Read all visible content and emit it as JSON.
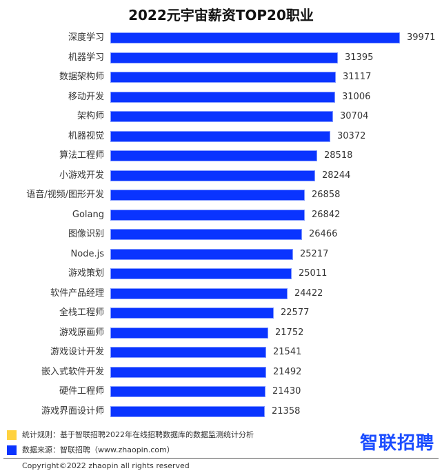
{
  "title": "2022元宇宙薪资TOP20职业",
  "chart_data": {
    "type": "bar",
    "orientation": "horizontal",
    "title": "2022元宇宙薪资TOP20职业",
    "xlabel": "",
    "ylabel": "",
    "grid": false,
    "legend_position": "none",
    "bar_color": "#0a34ff",
    "categories": [
      "深度学习",
      "机器学习",
      "数据架构师",
      "移动开发",
      "架构师",
      "机器视觉",
      "算法工程师",
      "小游戏开发",
      "语音/视频/图形开发",
      "Golang",
      "图像识别",
      "Node.js",
      "游戏策划",
      "软件产品经理",
      "全栈工程师",
      "游戏原画师",
      "游戏设计开发",
      "嵌入式软件开发",
      "硬件工程师",
      "游戏界面设计师"
    ],
    "values": [
      39971,
      31395,
      31117,
      31006,
      30704,
      30372,
      28518,
      28244,
      26858,
      26842,
      26466,
      25217,
      25011,
      24422,
      22577,
      21752,
      21541,
      21492,
      21430,
      21358
    ],
    "xlim": [
      0,
      39971
    ]
  },
  "rows": [
    {
      "label": "深度学习",
      "value": "39971"
    },
    {
      "label": "机器学习",
      "value": "31395"
    },
    {
      "label": "数据架构师",
      "value": "31117"
    },
    {
      "label": "移动开发",
      "value": "31006"
    },
    {
      "label": "架构师",
      "value": "30704"
    },
    {
      "label": "机器视觉",
      "value": "30372"
    },
    {
      "label": "算法工程师",
      "value": "28518"
    },
    {
      "label": "小游戏开发",
      "value": "28244"
    },
    {
      "label": "语音/视频/图形开发",
      "value": "26858"
    },
    {
      "label": "Golang",
      "value": "26842"
    },
    {
      "label": "图像识别",
      "value": "26466"
    },
    {
      "label": "Node.js",
      "value": "25217"
    },
    {
      "label": "游戏策划",
      "value": "25011"
    },
    {
      "label": "软件产品经理",
      "value": "24422"
    },
    {
      "label": "全栈工程师",
      "value": "22577"
    },
    {
      "label": "游戏原画师",
      "value": "21752"
    },
    {
      "label": "游戏设计开发",
      "value": "21541"
    },
    {
      "label": "嵌入式软件开发",
      "value": "21492"
    },
    {
      "label": "硬件工程师",
      "value": "21430"
    },
    {
      "label": "游戏界面设计师",
      "value": "21358"
    }
  ],
  "legend": {
    "items": [
      {
        "text": "统计规则：基于智联招聘2022年在线招聘数据库的数据监测统计分析",
        "color": "#ffd23f"
      },
      {
        "text": "数据来源：智联招聘（www.zhaopin.com）",
        "color": "#0a34ff"
      }
    ]
  },
  "logo": {
    "text": "智联招聘",
    "color": "#1a4cff",
    "accent": "#ffc400"
  },
  "footer": {
    "copyright": "Copyright©2022 zhaopin all rights reserved"
  }
}
